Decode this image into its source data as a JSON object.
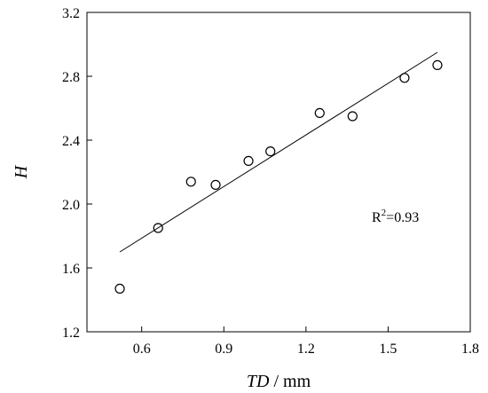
{
  "chart_data": {
    "type": "scatter",
    "xlabel_var": "TD",
    "xlabel_unit": " / mm",
    "ylabel": "H",
    "xlim": [
      0.4,
      1.8
    ],
    "ylim": [
      1.2,
      3.2
    ],
    "xticks": [
      0.6,
      0.9,
      1.2,
      1.5,
      1.8
    ],
    "xtick_labels": [
      "0.6",
      "0.9",
      "1.2",
      "1.5",
      "1.8"
    ],
    "yticks": [
      1.2,
      1.6,
      2.0,
      2.4,
      2.8,
      3.2
    ],
    "ytick_labels": [
      "1.2",
      "1.6",
      "2.0",
      "2.4",
      "2.8",
      "3.2"
    ],
    "grid": false,
    "series": [
      {
        "marker": "open-circle",
        "x": [
          0.52,
          0.66,
          0.78,
          0.87,
          0.99,
          1.07,
          1.25,
          1.37,
          1.56,
          1.68
        ],
        "y": [
          1.47,
          1.85,
          2.14,
          2.12,
          2.27,
          2.33,
          2.57,
          2.55,
          2.79,
          2.87
        ]
      }
    ],
    "fit_line": {
      "x": [
        0.52,
        1.68
      ],
      "y": [
        1.7,
        2.95
      ]
    },
    "annotation": {
      "r_letter": "R",
      "r_sup": "2",
      "r_value": "=0.93"
    }
  }
}
